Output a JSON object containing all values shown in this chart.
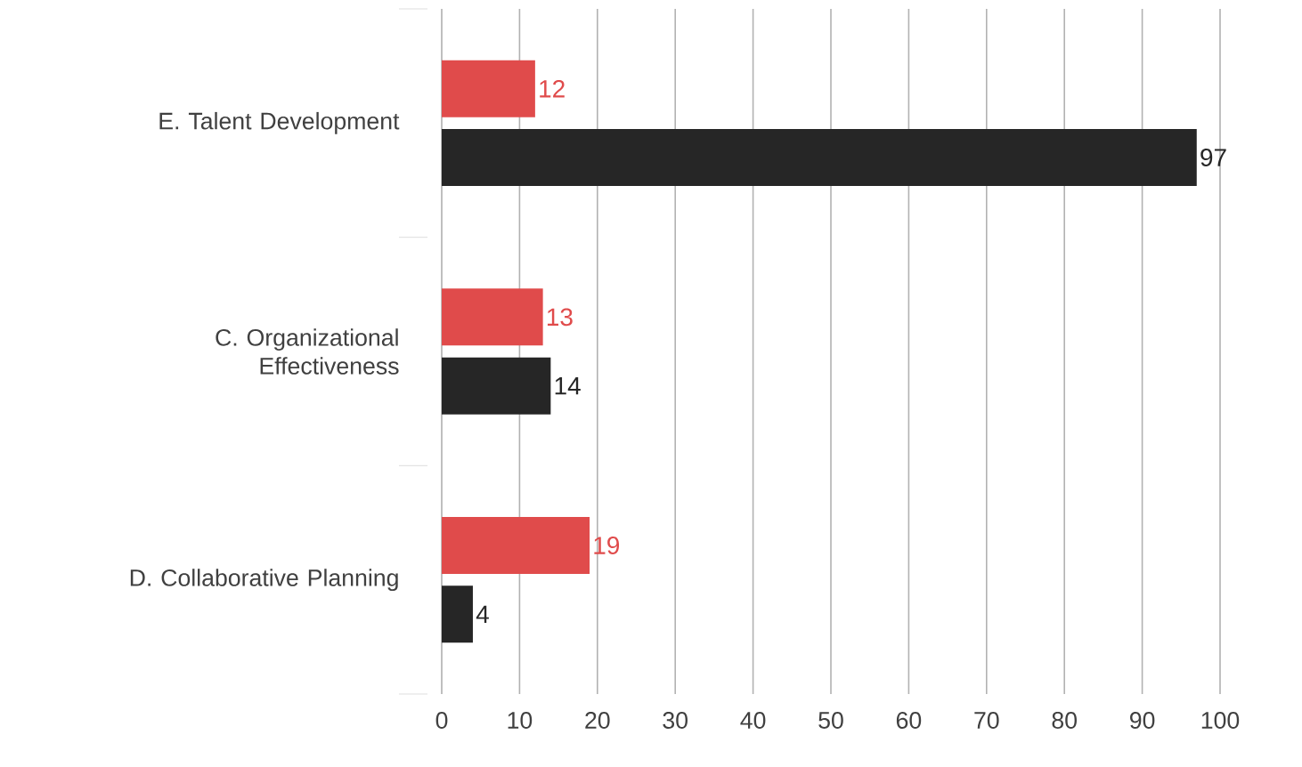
{
  "chart_data": {
    "type": "bar",
    "orientation": "horizontal",
    "categories": [
      "E. Talent Development",
      "C. Organizational Effectiveness",
      "D. Collaborative Planning"
    ],
    "series": [
      {
        "color": "#e04b4b",
        "values": [
          12,
          13,
          19
        ]
      },
      {
        "color": "#262626",
        "values": [
          97,
          14,
          4
        ]
      }
    ],
    "xlim": [
      0,
      100
    ],
    "xticks": [
      0,
      10,
      20,
      30,
      40,
      50,
      60,
      70,
      80,
      90,
      100
    ],
    "grid": "x",
    "data_labels": true
  }
}
